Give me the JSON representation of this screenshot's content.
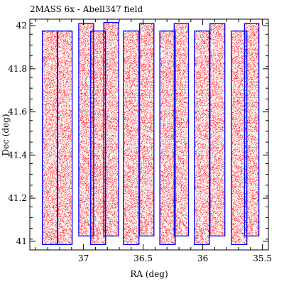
{
  "chart_data": {
    "type": "scatter",
    "title": "2MASS 6x - Abell347 field",
    "xlabel": "RA (deg)",
    "ylabel": "Dec (deg)",
    "xlim": [
      37.45,
      35.45
    ],
    "ylim": [
      40.96,
      42.03
    ],
    "x_ticks": [
      37,
      36.5,
      36,
      35.5
    ],
    "x_tick_labels": [
      "37",
      "36.5",
      "36",
      "35.5"
    ],
    "y_ticks": [
      41,
      41.2,
      41.4,
      41.6,
      41.8,
      42
    ],
    "y_tick_labels": [
      "41",
      "41.2",
      "41.4",
      "41.6",
      "41.8",
      "42"
    ],
    "grid": false,
    "legend": "none",
    "point_color": "#ff0000",
    "frame_color": "#0000ff",
    "points_note": "dense uniform field of faint sources covering the scan footprints",
    "scan_footprints": [
      {
        "ra": [
          37.345,
          37.215
        ],
        "dec": [
          40.985,
          41.975
        ]
      },
      {
        "ra": [
          37.22,
          37.095
        ],
        "dec": [
          40.985,
          41.975
        ]
      },
      {
        "ra": [
          37.04,
          36.915
        ],
        "dec": [
          41.025,
          42.01
        ]
      },
      {
        "ra": [
          36.94,
          36.815
        ],
        "dec": [
          40.985,
          41.975
        ]
      },
      {
        "ra": [
          36.83,
          36.705
        ],
        "dec": [
          41.025,
          42.015
        ]
      },
      {
        "ra": [
          36.665,
          36.535
        ],
        "dec": [
          40.985,
          41.975
        ]
      },
      {
        "ra": [
          36.53,
          36.41
        ],
        "dec": [
          41.025,
          42.01
        ]
      },
      {
        "ra": [
          36.36,
          36.23
        ],
        "dec": [
          40.985,
          41.975
        ]
      },
      {
        "ra": [
          36.24,
          36.12
        ],
        "dec": [
          41.025,
          42.01
        ]
      },
      {
        "ra": [
          36.07,
          35.945
        ],
        "dec": [
          40.985,
          41.975
        ]
      },
      {
        "ra": [
          35.94,
          35.815
        ],
        "dec": [
          41.025,
          42.01
        ]
      },
      {
        "ra": [
          35.76,
          35.63
        ],
        "dec": [
          40.985,
          41.975
        ]
      },
      {
        "ra": [
          35.65,
          35.53
        ],
        "dec": [
          41.025,
          42.01
        ]
      }
    ]
  }
}
